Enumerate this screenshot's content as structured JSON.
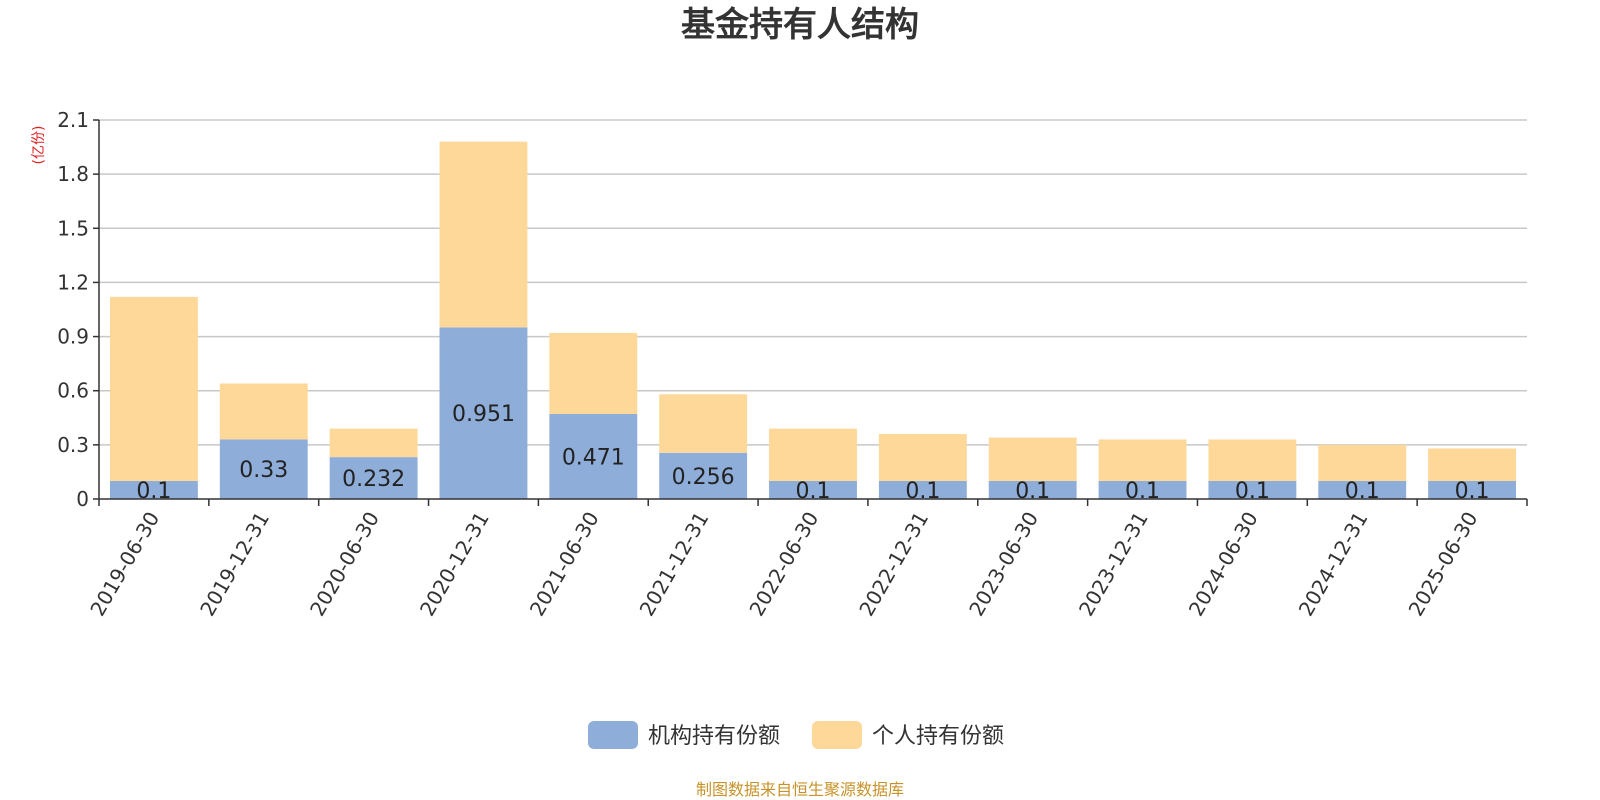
{
  "chart_data": {
    "type": "bar",
    "stacked": true,
    "title": "基金持有人结构",
    "ylabel": "(亿份)",
    "ylim": [
      0,
      2.1
    ],
    "yticks": [
      "0",
      "0.3",
      "0.6",
      "0.9",
      "1.2",
      "1.5",
      "1.8",
      "2.1"
    ],
    "grid": true,
    "legend_position": "bottom",
    "categories": [
      "2019-06-30",
      "2019-12-31",
      "2020-06-30",
      "2020-12-31",
      "2021-06-30",
      "2021-12-31",
      "2022-06-30",
      "2022-12-31",
      "2023-06-30",
      "2023-12-31",
      "2024-06-30",
      "2024-12-31",
      "2025-06-30"
    ],
    "series": [
      {
        "name": "机构持有份额",
        "color": "#8eadd9",
        "values": [
          0.1,
          0.33,
          0.232,
          0.951,
          0.471,
          0.256,
          0.1,
          0.1,
          0.1,
          0.1,
          0.1,
          0.1,
          0.1
        ],
        "labels": [
          "0.1",
          "0.33",
          "0.232",
          "0.951",
          "0.471",
          "0.256",
          "0.1",
          "0.1",
          "0.1",
          "0.1",
          "0.1",
          "0.1",
          "0.1"
        ]
      },
      {
        "name": "个人持有份额",
        "color": "#fdd898",
        "values": [
          1.02,
          0.31,
          0.158,
          1.029,
          0.449,
          0.324,
          0.29,
          0.26,
          0.24,
          0.23,
          0.23,
          0.2,
          0.18
        ]
      }
    ],
    "source": "制图数据来自恒生聚源数据库",
    "title_color": "#333333",
    "unit_color": "#e02020",
    "source_color": "#c8922a"
  }
}
